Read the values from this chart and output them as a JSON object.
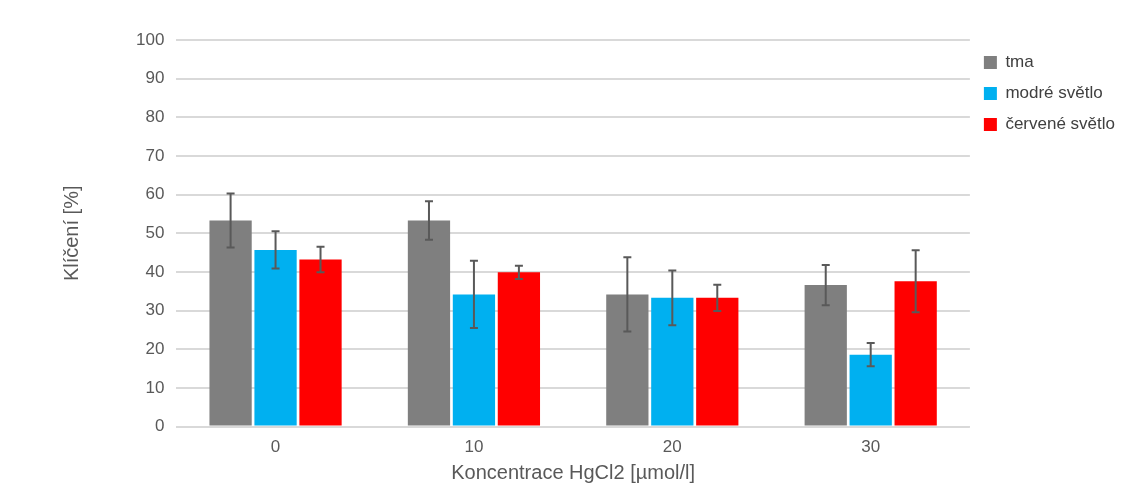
{
  "chart_data": {
    "type": "bar",
    "xlabel": "Koncentrace HgCl2 [µmol/l]",
    "ylabel": "Klíčení [%]",
    "categories": [
      "0",
      "10",
      "20",
      "30"
    ],
    "series": [
      {
        "name": "tma",
        "color": "#7f7f7f",
        "values": [
          53.3,
          53.3,
          34.2,
          36.6
        ],
        "errors": [
          7,
          5,
          9.6,
          5.2
        ]
      },
      {
        "name": "modré světlo",
        "color": "#00b0f0",
        "values": [
          45.7,
          34.2,
          33.3,
          18.6
        ],
        "errors": [
          4.8,
          8.7,
          7.1,
          3
        ]
      },
      {
        "name": "červené světlo",
        "color": "#ff0000",
        "values": [
          43.2,
          39.9,
          33.3,
          37.6
        ],
        "errors": [
          3.3,
          1.7,
          3.4,
          8
        ]
      }
    ],
    "ylim": [
      0,
      100
    ],
    "yticks": [
      0,
      10,
      20,
      30,
      40,
      50,
      60,
      70,
      80,
      90,
      100
    ],
    "grid": "y",
    "legend": "top right"
  }
}
